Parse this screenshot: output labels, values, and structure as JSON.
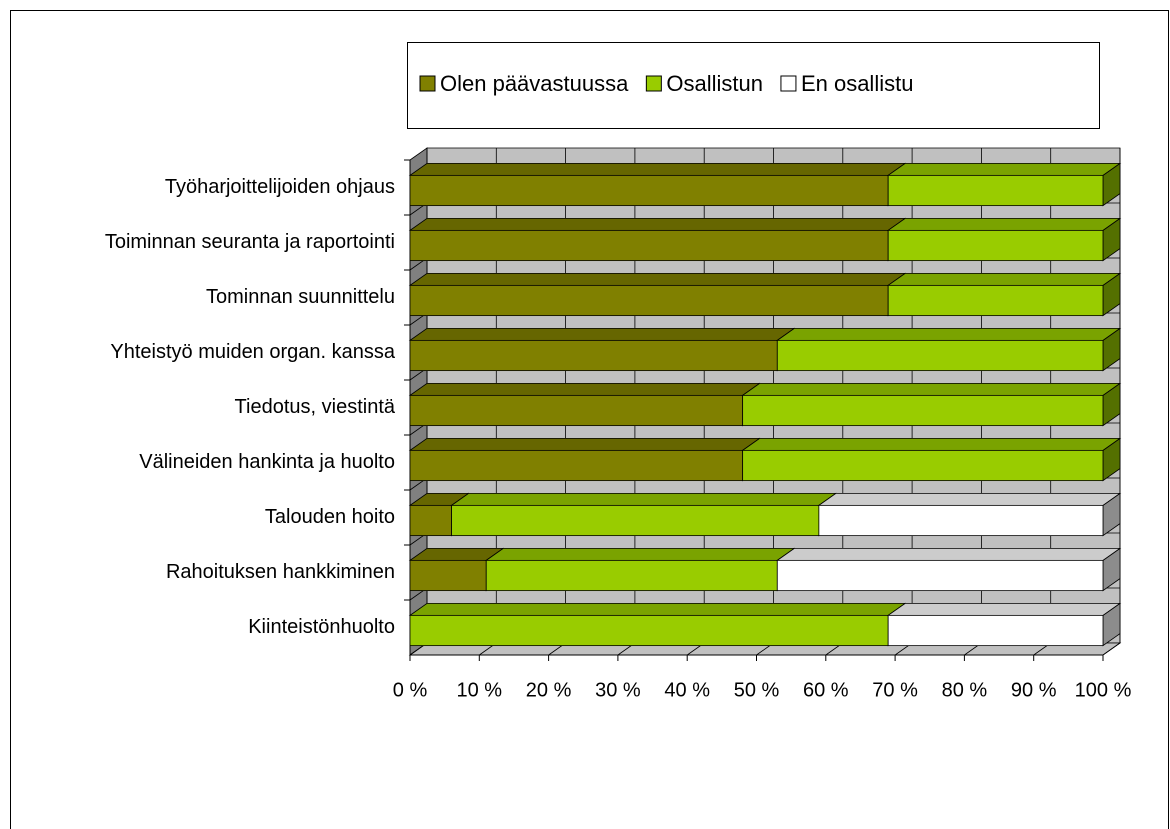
{
  "chart_data": {
    "type": "bar",
    "orientation": "horizontal",
    "stacked": true,
    "three_d": true,
    "grid": true,
    "legend": "top",
    "categories": [
      "Työharjoittelijoiden ohjaus",
      "Toiminnan seuranta ja raportointi",
      "Tominnan suunnittelu",
      "Yhteistyö muiden organ. kanssa",
      "Tiedotus, viestintä",
      "Välineiden hankinta ja huolto",
      "Talouden hoito",
      "Rahoituksen hankkiminen",
      "Kiinteistönhuolto"
    ],
    "series": [
      {
        "name": "Olen päävastuussa",
        "color": "#808000",
        "values": [
          69,
          69,
          69,
          53,
          48,
          48,
          6,
          11,
          0
        ]
      },
      {
        "name": "Osallistun",
        "color": "#99cc00",
        "values": [
          31,
          31,
          31,
          47,
          52,
          52,
          53,
          42,
          69
        ]
      },
      {
        "name": "En osallistu",
        "color": "#ffffff",
        "values": [
          0,
          0,
          0,
          0,
          0,
          0,
          41,
          47,
          31
        ]
      }
    ],
    "xlim": [
      0,
      100
    ],
    "xticks": [
      {
        "value": 0,
        "label": "0 %"
      },
      {
        "value": 10,
        "label": "10 %"
      },
      {
        "value": 20,
        "label": "20 %"
      },
      {
        "value": 30,
        "label": "30 %"
      },
      {
        "value": 40,
        "label": "40 %"
      },
      {
        "value": 50,
        "label": "50 %"
      },
      {
        "value": 60,
        "label": "60 %"
      },
      {
        "value": 70,
        "label": "70 %"
      },
      {
        "value": 80,
        "label": "80 %"
      },
      {
        "value": 90,
        "label": "90 %"
      },
      {
        "value": 100,
        "label": "100 %"
      }
    ]
  }
}
